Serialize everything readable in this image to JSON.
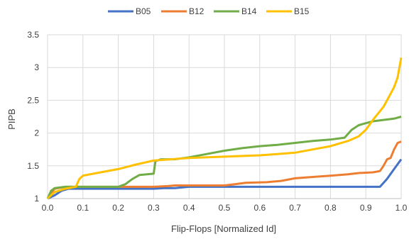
{
  "chart_data": {
    "type": "line",
    "title": "",
    "xlabel": "Flip-Flops [Normalized Id]",
    "ylabel": "PIPB",
    "xlim": [
      0,
      1
    ],
    "ylim": [
      1,
      3.5
    ],
    "x_ticks": [
      "0.0",
      "0.1",
      "0.2",
      "0.3",
      "0.4",
      "0.5",
      "0.6",
      "0.7",
      "0.8",
      "0.9",
      "1.0"
    ],
    "y_ticks": [
      "1",
      "1.5",
      "2",
      "2.5",
      "3",
      "3.5"
    ],
    "grid": true,
    "legend_position": "top",
    "series": [
      {
        "name": "B05",
        "color": "#4472C4",
        "points": [
          [
            0,
            1.0
          ],
          [
            0.02,
            1.05
          ],
          [
            0.04,
            1.12
          ],
          [
            0.06,
            1.15
          ],
          [
            0.2,
            1.15
          ],
          [
            0.3,
            1.15
          ],
          [
            0.33,
            1.16
          ],
          [
            0.36,
            1.16
          ],
          [
            0.4,
            1.18
          ],
          [
            0.6,
            1.18
          ],
          [
            0.8,
            1.18
          ],
          [
            0.94,
            1.18
          ],
          [
            0.96,
            1.3
          ],
          [
            0.98,
            1.45
          ],
          [
            1.0,
            1.6
          ]
        ]
      },
      {
        "name": "B12",
        "color": "#ED7D31",
        "points": [
          [
            0,
            1.0
          ],
          [
            0.01,
            1.08
          ],
          [
            0.02,
            1.15
          ],
          [
            0.05,
            1.18
          ],
          [
            0.2,
            1.18
          ],
          [
            0.3,
            1.18
          ],
          [
            0.34,
            1.19
          ],
          [
            0.36,
            1.2
          ],
          [
            0.5,
            1.2
          ],
          [
            0.53,
            1.22
          ],
          [
            0.56,
            1.24
          ],
          [
            0.62,
            1.25
          ],
          [
            0.66,
            1.27
          ],
          [
            0.7,
            1.31
          ],
          [
            0.75,
            1.33
          ],
          [
            0.8,
            1.35
          ],
          [
            0.85,
            1.37
          ],
          [
            0.88,
            1.39
          ],
          [
            0.92,
            1.4
          ],
          [
            0.94,
            1.42
          ],
          [
            0.95,
            1.5
          ],
          [
            0.96,
            1.6
          ],
          [
            0.97,
            1.62
          ],
          [
            0.98,
            1.75
          ],
          [
            0.99,
            1.85
          ],
          [
            1.0,
            1.87
          ]
        ]
      },
      {
        "name": "B14",
        "color": "#70AD47",
        "points": [
          [
            0,
            1.0
          ],
          [
            0.01,
            1.12
          ],
          [
            0.02,
            1.16
          ],
          [
            0.05,
            1.18
          ],
          [
            0.2,
            1.18
          ],
          [
            0.22,
            1.22
          ],
          [
            0.24,
            1.3
          ],
          [
            0.26,
            1.36
          ],
          [
            0.3,
            1.38
          ],
          [
            0.305,
            1.57
          ],
          [
            0.32,
            1.6
          ],
          [
            0.36,
            1.6
          ],
          [
            0.4,
            1.63
          ],
          [
            0.45,
            1.68
          ],
          [
            0.5,
            1.73
          ],
          [
            0.55,
            1.77
          ],
          [
            0.6,
            1.8
          ],
          [
            0.65,
            1.82
          ],
          [
            0.7,
            1.85
          ],
          [
            0.75,
            1.88
          ],
          [
            0.8,
            1.9
          ],
          [
            0.84,
            1.93
          ],
          [
            0.86,
            2.05
          ],
          [
            0.88,
            2.12
          ],
          [
            0.9,
            2.15
          ],
          [
            0.92,
            2.18
          ],
          [
            0.95,
            2.2
          ],
          [
            0.98,
            2.22
          ],
          [
            1.0,
            2.25
          ]
        ]
      },
      {
        "name": "B15",
        "color": "#FFC000",
        "points": [
          [
            0,
            1.0
          ],
          [
            0.01,
            1.05
          ],
          [
            0.02,
            1.1
          ],
          [
            0.05,
            1.15
          ],
          [
            0.08,
            1.18
          ],
          [
            0.09,
            1.3
          ],
          [
            0.1,
            1.35
          ],
          [
            0.15,
            1.4
          ],
          [
            0.2,
            1.45
          ],
          [
            0.25,
            1.52
          ],
          [
            0.3,
            1.58
          ],
          [
            0.35,
            1.6
          ],
          [
            0.4,
            1.62
          ],
          [
            0.5,
            1.64
          ],
          [
            0.6,
            1.66
          ],
          [
            0.65,
            1.68
          ],
          [
            0.7,
            1.7
          ],
          [
            0.75,
            1.75
          ],
          [
            0.8,
            1.8
          ],
          [
            0.85,
            1.88
          ],
          [
            0.88,
            1.95
          ],
          [
            0.9,
            2.05
          ],
          [
            0.92,
            2.2
          ],
          [
            0.95,
            2.4
          ],
          [
            0.97,
            2.6
          ],
          [
            0.98,
            2.7
          ],
          [
            0.99,
            2.85
          ],
          [
            1.0,
            3.15
          ]
        ]
      }
    ]
  }
}
